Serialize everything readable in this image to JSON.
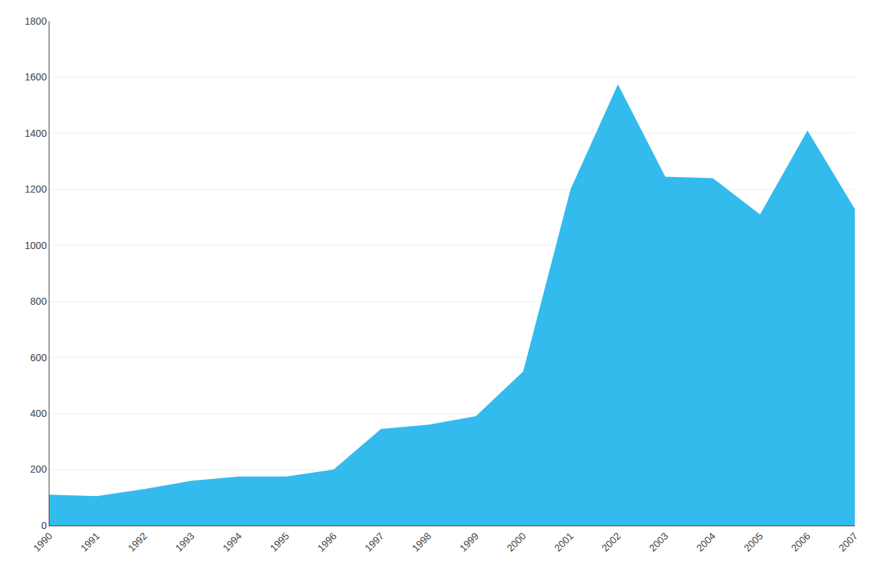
{
  "chart_data": {
    "type": "area",
    "x": [
      1990,
      1991,
      1992,
      1993,
      1994,
      1995,
      1996,
      1997,
      1998,
      1999,
      2000,
      2001,
      2002,
      2003,
      2004,
      2005,
      2006,
      2007
    ],
    "values": [
      110,
      105,
      130,
      160,
      175,
      175,
      200,
      345,
      360,
      390,
      550,
      1200,
      1575,
      1245,
      1240,
      1110,
      1410,
      1130
    ],
    "color": "#33BBEE",
    "xlim": [
      1990,
      2007
    ],
    "xticks": [
      1990,
      1991,
      1992,
      1993,
      1994,
      1995,
      1996,
      1997,
      1998,
      1999,
      2000,
      2001,
      2002,
      2003,
      2004,
      2005,
      2006,
      2007
    ],
    "ylim": [
      0,
      1800
    ],
    "yticks": [
      0,
      200,
      400,
      600,
      800,
      1000,
      1200,
      1400,
      1600,
      1800
    ],
    "grid": true
  }
}
